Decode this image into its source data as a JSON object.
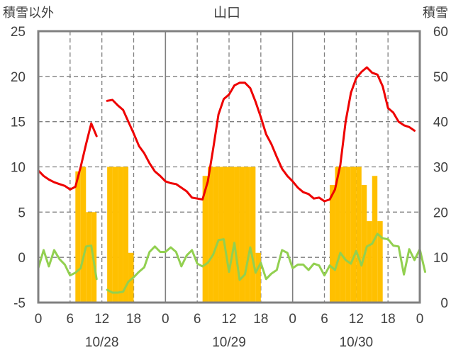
{
  "chart_data": {
    "type": "bar+line",
    "title": "山口",
    "left_axis_label": "積雪以外",
    "right_axis_label": "積雪",
    "left_ylim": [
      -5,
      25
    ],
    "left_yticks": [
      "25",
      "20",
      "15",
      "10",
      "5",
      "0",
      "-5"
    ],
    "right_ylim": [
      0,
      60
    ],
    "right_yticks": [
      "60",
      "50",
      "40",
      "30",
      "20",
      "10",
      "0"
    ],
    "x_hours": [
      0,
      72
    ],
    "x_tick_labels": [
      "0",
      "6",
      "12",
      "18",
      "0",
      "6",
      "12",
      "18",
      "0",
      "6",
      "12",
      "18",
      "0"
    ],
    "date_labels": [
      "10/28",
      "10/29",
      "10/30"
    ],
    "grid": "dashed, every 6 hours and every 5 left-axis units",
    "colors": {
      "bars": "#ffc000",
      "red_line": "#ee0000",
      "green_line": "#92d050",
      "frame": "#808080"
    },
    "bars": [
      {
        "x": 7.5,
        "v": 29
      },
      {
        "x": 8.5,
        "v": 30
      },
      {
        "x": 9.5,
        "v": 20
      },
      {
        "x": 10.5,
        "v": 20
      },
      {
        "x": 13.5,
        "v": 30
      },
      {
        "x": 14.5,
        "v": 30
      },
      {
        "x": 15.5,
        "v": 30
      },
      {
        "x": 16.5,
        "v": 30
      },
      {
        "x": 17.5,
        "v": 11
      },
      {
        "x": 31.5,
        "v": 28
      },
      {
        "x": 32.5,
        "v": 30
      },
      {
        "x": 33.5,
        "v": 30
      },
      {
        "x": 34.5,
        "v": 30
      },
      {
        "x": 35.5,
        "v": 30
      },
      {
        "x": 36.5,
        "v": 30
      },
      {
        "x": 37.5,
        "v": 30
      },
      {
        "x": 38.5,
        "v": 30
      },
      {
        "x": 39.5,
        "v": 30
      },
      {
        "x": 40.5,
        "v": 30
      },
      {
        "x": 41.5,
        "v": 11
      },
      {
        "x": 55.5,
        "v": 26
      },
      {
        "x": 56.5,
        "v": 30
      },
      {
        "x": 57.5,
        "v": 30
      },
      {
        "x": 58.5,
        "v": 30
      },
      {
        "x": 59.5,
        "v": 30
      },
      {
        "x": 60.5,
        "v": 30
      },
      {
        "x": 61.5,
        "v": 26
      },
      {
        "x": 62.5,
        "v": 18
      },
      {
        "x": 63.5,
        "v": 28
      },
      {
        "x": 64.5,
        "v": 18
      }
    ],
    "red_line": [
      [
        [
          0,
          9.6
        ],
        [
          1,
          9.0
        ],
        [
          2,
          8.6
        ],
        [
          3,
          8.3
        ],
        [
          4,
          8.1
        ],
        [
          5,
          7.9
        ],
        [
          6,
          7.5
        ],
        [
          7,
          7.8
        ],
        [
          8,
          10.0
        ],
        [
          9,
          12.5
        ],
        [
          10,
          14.8
        ],
        [
          11,
          13.4
        ]
      ],
      [
        [
          13,
          17.3
        ],
        [
          14,
          17.4
        ],
        [
          15,
          16.8
        ],
        [
          16,
          16.3
        ],
        [
          17,
          15.0
        ],
        [
          18,
          13.7
        ],
        [
          19,
          12.3
        ],
        [
          20,
          11.5
        ],
        [
          21,
          10.4
        ],
        [
          22,
          9.5
        ],
        [
          23,
          9.0
        ],
        [
          24,
          8.4
        ],
        [
          25,
          8.2
        ],
        [
          26,
          8.1
        ],
        [
          27,
          7.7
        ],
        [
          28,
          7.3
        ],
        [
          29,
          6.6
        ],
        [
          30,
          6.5
        ],
        [
          31,
          6.4
        ],
        [
          32,
          8.4
        ],
        [
          33,
          12.0
        ],
        [
          34,
          15.8
        ],
        [
          35,
          17.5
        ],
        [
          36,
          18.0
        ],
        [
          37,
          19.0
        ],
        [
          38,
          19.3
        ],
        [
          39,
          19.3
        ],
        [
          40,
          18.7
        ],
        [
          41,
          17.2
        ],
        [
          42,
          15.5
        ],
        [
          43,
          13.6
        ],
        [
          44,
          12.5
        ],
        [
          45,
          11.1
        ],
        [
          46,
          9.8
        ],
        [
          47,
          9.0
        ],
        [
          48,
          8.4
        ],
        [
          49,
          7.7
        ],
        [
          50,
          7.2
        ],
        [
          51,
          7.0
        ],
        [
          52,
          6.5
        ],
        [
          53,
          6.6
        ],
        [
          54,
          6.2
        ],
        [
          55,
          6.4
        ],
        [
          56,
          7.5
        ],
        [
          57,
          10.2
        ],
        [
          58,
          15.0
        ],
        [
          59,
          18.2
        ],
        [
          60,
          19.8
        ],
        [
          61,
          20.5
        ],
        [
          62,
          21.0
        ],
        [
          63,
          20.4
        ],
        [
          64,
          20.2
        ],
        [
          65,
          18.9
        ],
        [
          66,
          16.5
        ],
        [
          67,
          16.0
        ],
        [
          68,
          15.0
        ],
        [
          69,
          14.6
        ],
        [
          70,
          14.4
        ],
        [
          71,
          14.0
        ]
      ]
    ],
    "green_line": [
      [
        [
          0,
          -1.2
        ],
        [
          1,
          0.8
        ],
        [
          2,
          -1.0
        ],
        [
          3,
          0.8
        ],
        [
          4,
          -0.2
        ],
        [
          5,
          -0.8
        ],
        [
          6,
          -2.0
        ],
        [
          7,
          -1.7
        ],
        [
          8,
          -1.2
        ],
        [
          9,
          1.2
        ],
        [
          10,
          1.3
        ],
        [
          11,
          -2.4
        ]
      ],
      [
        [
          13,
          -3.6
        ],
        [
          14,
          -3.9
        ],
        [
          15,
          -3.9
        ],
        [
          16,
          -3.8
        ],
        [
          17,
          -2.7
        ],
        [
          18,
          -2.2
        ],
        [
          19,
          -1.6
        ],
        [
          20,
          -1.1
        ],
        [
          21,
          0.6
        ],
        [
          22,
          1.2
        ],
        [
          23,
          0.6
        ],
        [
          24,
          0.6
        ],
        [
          25,
          1.1
        ],
        [
          26,
          0.6
        ],
        [
          27,
          -1.0
        ],
        [
          28,
          0.2
        ],
        [
          29,
          0.8
        ],
        [
          30,
          -0.7
        ],
        [
          31,
          -1.0
        ],
        [
          32,
          -0.6
        ],
        [
          33,
          0.3
        ],
        [
          34,
          1.9
        ],
        [
          35,
          2.0
        ],
        [
          36,
          -1.6
        ],
        [
          37,
          1.6
        ],
        [
          38,
          -2.5
        ],
        [
          39,
          -1.9
        ],
        [
          40,
          1.1
        ],
        [
          41,
          -1.7
        ],
        [
          42,
          -0.6
        ],
        [
          43,
          -2.4
        ],
        [
          44,
          -1.8
        ],
        [
          45,
          -1.4
        ],
        [
          46,
          0.8
        ],
        [
          47,
          0.5
        ],
        [
          48,
          -1.2
        ],
        [
          49,
          -0.8
        ],
        [
          50,
          -0.8
        ],
        [
          51,
          -1.4
        ],
        [
          52,
          -0.7
        ],
        [
          53,
          -0.9
        ],
        [
          54,
          -2.0
        ],
        [
          55,
          -0.9
        ],
        [
          56,
          -1.4
        ],
        [
          57,
          0.5
        ],
        [
          58,
          -0.3
        ],
        [
          59,
          -0.7
        ],
        [
          60,
          0.7
        ],
        [
          61,
          -0.9
        ],
        [
          62,
          1.2
        ],
        [
          63,
          1.5
        ],
        [
          64,
          2.6
        ],
        [
          65,
          2.1
        ],
        [
          66,
          2.0
        ],
        [
          67,
          1.3
        ],
        [
          68,
          1.2
        ],
        [
          69,
          -1.9
        ],
        [
          70,
          0.9
        ],
        [
          71,
          -0.3
        ],
        [
          72,
          0.9
        ],
        [
          73,
          -1.6
        ]
      ]
    ]
  }
}
